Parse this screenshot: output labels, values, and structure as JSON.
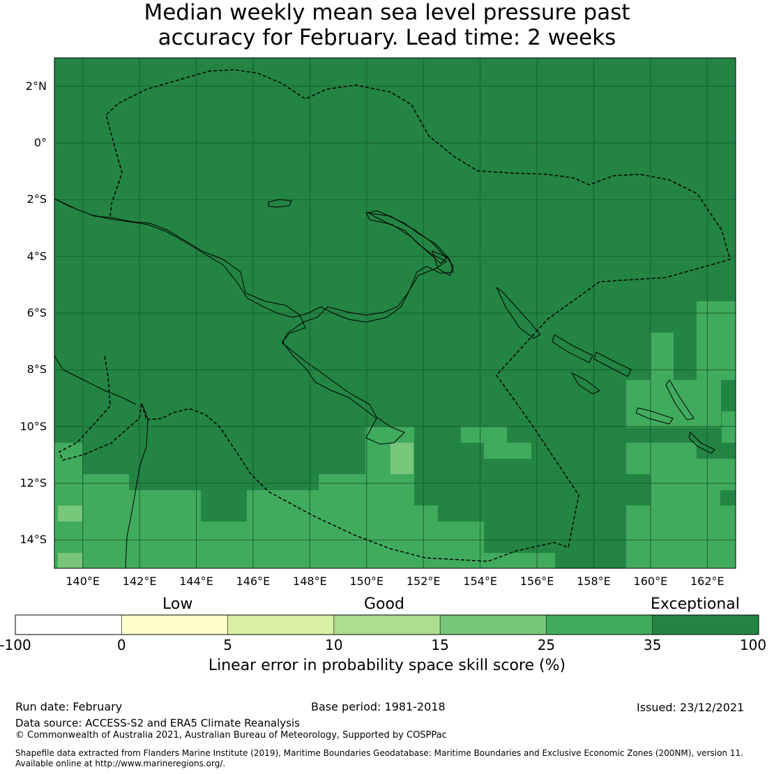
{
  "title": {
    "line1": "Median weekly mean sea level pressure past",
    "line2": "accuracy for February. Lead time: 2 weeks"
  },
  "map": {
    "lat_labels": [
      "2°N",
      "0°",
      "2°S",
      "4°S",
      "6°S",
      "8°S",
      "10°S",
      "12°S",
      "14°S"
    ],
    "lat_values": [
      2,
      0,
      -2,
      -4,
      -6,
      -8,
      -10,
      -12,
      -14
    ],
    "lon_labels": [
      "140°E",
      "142°E",
      "144°E",
      "146°E",
      "148°E",
      "150°E",
      "152°E",
      "154°E",
      "156°E",
      "158°E",
      "160°E",
      "162°E"
    ],
    "lon_values": [
      140,
      142,
      144,
      146,
      148,
      150,
      152,
      154,
      156,
      158,
      160,
      162
    ],
    "extent": {
      "lon_min": 139,
      "lon_max": 163,
      "lat_min": -15,
      "lat_max": 3
    },
    "colors": {
      "exceptional": "#238443",
      "good_high": "#41ab5d",
      "good_mid": "#78c679",
      "grid": "#1a5e30"
    }
  },
  "legend": {
    "categories": [
      "Low",
      "Good",
      "Exceptional"
    ],
    "tick_labels": [
      "-100",
      "0",
      "5",
      "10",
      "15",
      "25",
      "35",
      "100"
    ],
    "colors": [
      "#ffffff",
      "#ffffcc",
      "#d9f0a3",
      "#addd8e",
      "#78c679",
      "#41ab5d",
      "#238443"
    ],
    "title": "Linear error in probability space skill score (%)"
  },
  "footer": {
    "run_date": "Run date: February",
    "base_period": "Base period: 1981-2018",
    "issued": "Issued: 23/12/2021",
    "data_source": "Data source: ACCESS-S2 and ERA5 Climate Reanalysis",
    "copyright": "© Commonwealth of Australia 2021, Australian Bureau of Meteorology, Supported by COSPPac",
    "shapefile_line1": "Shapefile data extracted from Flanders Marine Institute (2019), Maritime Boundaries Geodatabase: Maritime Boundaries and Exclusive Economic Zones (200NM), version 11.",
    "shapefile_line2": "Available online at http://www.marineregions.org/."
  }
}
